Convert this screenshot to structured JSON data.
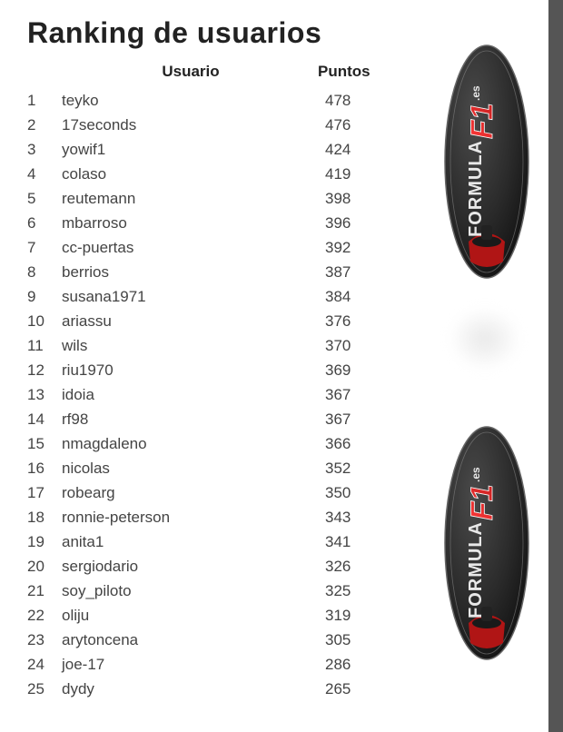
{
  "page_title": "Ranking de usuarios",
  "columns": {
    "user": "Usuario",
    "points": "Puntos"
  },
  "rows": [
    {
      "rank": "1",
      "user": "teyko",
      "points": "478"
    },
    {
      "rank": "2",
      "user": "17seconds",
      "points": "476"
    },
    {
      "rank": "3",
      "user": "yowif1",
      "points": "424"
    },
    {
      "rank": "4",
      "user": "colaso",
      "points": "419"
    },
    {
      "rank": "5",
      "user": "reutemann",
      "points": "398"
    },
    {
      "rank": "6",
      "user": "mbarroso",
      "points": "396"
    },
    {
      "rank": "7",
      "user": "cc-puertas",
      "points": "392"
    },
    {
      "rank": "8",
      "user": "berrios",
      "points": "387"
    },
    {
      "rank": "9",
      "user": "susana1971",
      "points": "384"
    },
    {
      "rank": "10",
      "user": "ariassu",
      "points": "376"
    },
    {
      "rank": "11",
      "user": "wils",
      "points": "370"
    },
    {
      "rank": "12",
      "user": "riu1970",
      "points": "369"
    },
    {
      "rank": "13",
      "user": "idoia",
      "points": "367"
    },
    {
      "rank": "14",
      "user": "rf98",
      "points": "367"
    },
    {
      "rank": "15",
      "user": "nmagdaleno",
      "points": "366"
    },
    {
      "rank": "16",
      "user": "nicolas",
      "points": "352"
    },
    {
      "rank": "17",
      "user": "robearg",
      "points": "350"
    },
    {
      "rank": "18",
      "user": "ronnie-peterson",
      "points": "343"
    },
    {
      "rank": "19",
      "user": "anita1",
      "points": "341"
    },
    {
      "rank": "20",
      "user": "sergiodario",
      "points": "326"
    },
    {
      "rank": "21",
      "user": "soy_piloto",
      "points": "325"
    },
    {
      "rank": "22",
      "user": "oliju",
      "points": "319"
    },
    {
      "rank": "23",
      "user": "arytoncena",
      "points": "305"
    },
    {
      "rank": "24",
      "user": "joe-17",
      "points": "286"
    },
    {
      "rank": "25",
      "user": "dydy",
      "points": "265"
    }
  ],
  "badge": {
    "text_formula": "FORMULA",
    "text_f1": "F1",
    "text_tld": ".es",
    "colors": {
      "body": "#2a2a2a",
      "body_shine": "#4a4a4a",
      "f1_red": "#c41e1e",
      "text_white": "#e8e8e8",
      "car_red": "#b01515"
    }
  },
  "table_style": {
    "background": "#ffffff",
    "text_color": "#444444",
    "title_color": "#222222",
    "font_size_title": 32,
    "font_size_body": 17,
    "row_line_height": 27
  }
}
